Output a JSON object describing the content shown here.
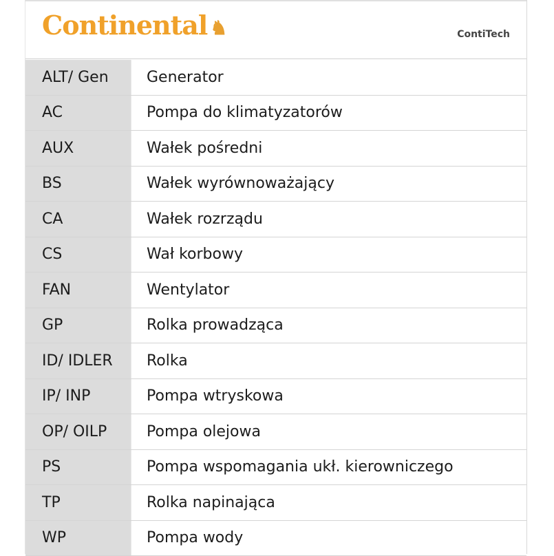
{
  "header": {
    "brand": "Continental",
    "sub_brand": "ContiTech",
    "brand_color": "#f0a12a"
  },
  "rows": [
    {
      "abbr": "ALT/ Gen",
      "desc": "Generator"
    },
    {
      "abbr": "AC",
      "desc": "Pompa do klimatyzatorów"
    },
    {
      "abbr": "AUX",
      "desc": "Wałek  pośredni"
    },
    {
      "abbr": "BS",
      "desc": "Wałek  wyrównoważający"
    },
    {
      "abbr": "CA",
      "desc": "Wałek rozrządu"
    },
    {
      "abbr": "CS",
      "desc": "Wał korbowy"
    },
    {
      "abbr": "FAN",
      "desc": "Wentylator"
    },
    {
      "abbr": "GP",
      "desc": "Rolka prowadząca"
    },
    {
      "abbr": "ID/ IDLER",
      "desc": "Rolka"
    },
    {
      "abbr": "IP/ INP",
      "desc": "Pompa wtryskowa"
    },
    {
      "abbr": "OP/ OILP",
      "desc": "Pompa olejowa"
    },
    {
      "abbr": "PS",
      "desc": "Pompa wspomagania ukł. kierowniczego"
    },
    {
      "abbr": "TP",
      "desc": "Rolka napinająca"
    },
    {
      "abbr": "WP",
      "desc": "Pompa wody"
    }
  ]
}
